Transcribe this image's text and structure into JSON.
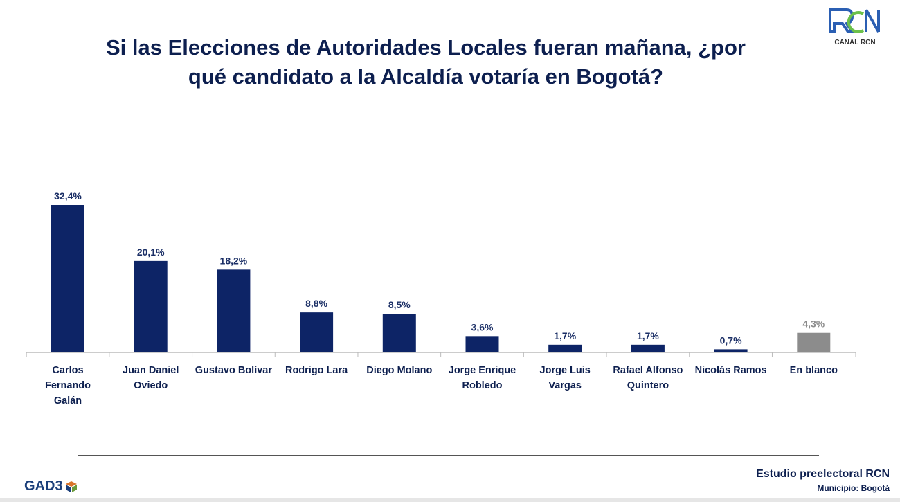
{
  "title_line1": "Si las Elecciones de Autoridades Locales fueran mañana, ¿por",
  "title_line2": "qué candidato a la Alcaldía votaría en Bogotá?",
  "logo_text": "CANAL RCN",
  "gad3": "GAD3",
  "footer": {
    "study": "Estudio preelectoral RCN",
    "municipio": "Municipio:  Bogotá"
  },
  "colors": {
    "bar": "#0d2466",
    "blank": "#8c8c8c",
    "label": "#1b2f66"
  },
  "chart_data": {
    "type": "bar",
    "title": "Si las Elecciones de Autoridades Locales fueran mañana, ¿por qué candidato a la Alcaldía votaría en Bogotá?",
    "categories": [
      [
        "Carlos",
        "Fernando",
        "Galán"
      ],
      [
        "Juan Daniel",
        "Oviedo"
      ],
      [
        "Gustavo Bolívar"
      ],
      [
        "Rodrigo Lara"
      ],
      [
        "Diego Molano"
      ],
      [
        "Jorge Enrique",
        "Robledo"
      ],
      [
        "Jorge Luis",
        "Vargas"
      ],
      [
        "Rafael Alfonso",
        "Quintero"
      ],
      [
        "Nicolás Ramos"
      ],
      [
        "En blanco"
      ]
    ],
    "values": [
      32.4,
      20.1,
      18.2,
      8.8,
      8.5,
      3.6,
      1.7,
      1.7,
      0.7,
      4.3
    ],
    "data_labels": [
      "32,4%",
      "20,1%",
      "18,2%",
      "8,8%",
      "8,5%",
      "3,6%",
      "1,7%",
      "1,7%",
      "0,7%",
      "4,3%"
    ],
    "highlight_gray": [
      9
    ],
    "xlabel": "",
    "ylabel": "",
    "ylim": [
      0,
      35
    ],
    "grid": false
  }
}
